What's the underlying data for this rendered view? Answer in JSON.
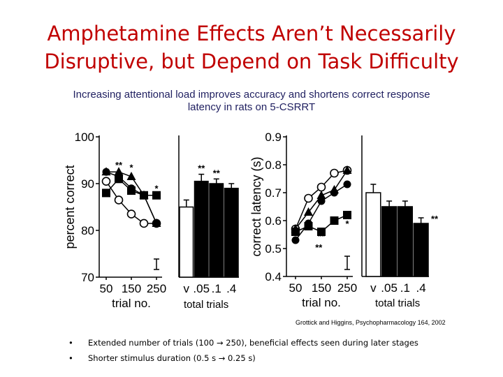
{
  "slide": {
    "title_line1": "Amphetamine Effects Aren’t Necessarily",
    "title_line2": "Disruptive, but Depend on Task Difficulty",
    "subtitle_line1": "Increasing attentional load improves accuracy and shortens correct response",
    "subtitle_line2": "latency in rats on 5-CSRRT",
    "total_trials_left": "total trials",
    "total_trials_right": "total trials",
    "citation": "Grottick and Higgins, Psychopharmacology 164, 2002",
    "bullets": [
      "Extended number of trials (100 → 250), beneficial effects seen during later stages",
      "Shorter stimulus duration (0.5 s → 0.25 s)"
    ],
    "bullet_glyph": "•"
  },
  "chart_data": [
    {
      "type": "line",
      "ylabel": "percent correct",
      "xlabel": "trial no.",
      "x": [
        50,
        100,
        150,
        200,
        250
      ],
      "x_tick_labels": [
        "50",
        "150",
        "250"
      ],
      "ylim": [
        70,
        100
      ],
      "y_ticks": [
        70,
        80,
        90,
        100
      ],
      "series": [
        {
          "marker": "open-circle",
          "values": [
            90.5,
            86.5,
            83.5,
            81.5,
            81.5
          ]
        },
        {
          "marker": "filled-triangle",
          "values": [
            92.5,
            92.5,
            91.5,
            87.5,
            81.5
          ]
        },
        {
          "marker": "filled-circle",
          "values": [
            92.5,
            91.5,
            89.0,
            87.5,
            81.5
          ]
        },
        {
          "marker": "filled-square",
          "values": [
            88.0,
            91.0,
            88.5,
            87.5,
            87.5
          ]
        }
      ],
      "annotations": [
        {
          "text": "**",
          "x": 100,
          "y": 94.0
        },
        {
          "text": "*",
          "x": 150,
          "y": 93.5
        },
        {
          "text": "*",
          "x": 250,
          "y": 89.0
        }
      ]
    },
    {
      "type": "bar",
      "categories": [
        "v",
        ".05",
        ".1",
        ".4"
      ],
      "values": [
        85.0,
        90.5,
        90.0,
        89.0
      ],
      "errors": [
        1.5,
        1.5,
        1.0,
        1.0
      ],
      "xlabel": "total trials",
      "ylim": [
        70,
        100
      ],
      "annotations": [
        {
          "text": "**",
          "index": 1
        },
        {
          "text": "**",
          "index": 2
        }
      ]
    },
    {
      "type": "line",
      "ylabel": "correct latency (s)",
      "xlabel": "trial no.",
      "x": [
        50,
        100,
        150,
        200,
        250
      ],
      "x_tick_labels": [
        "50",
        "150",
        "250"
      ],
      "ylim": [
        0.4,
        0.9
      ],
      "y_ticks": [
        0.4,
        0.5,
        0.6,
        0.7,
        0.8,
        0.9
      ],
      "series": [
        {
          "marker": "open-circle",
          "values": [
            0.57,
            0.68,
            0.72,
            0.77,
            0.78
          ]
        },
        {
          "marker": "filled-triangle",
          "values": [
            0.57,
            0.63,
            0.69,
            0.71,
            0.78
          ]
        },
        {
          "marker": "filled-circle",
          "values": [
            0.53,
            0.59,
            0.67,
            0.7,
            0.73
          ]
        },
        {
          "marker": "filled-square",
          "values": [
            0.56,
            0.58,
            0.56,
            0.6,
            0.62
          ]
        }
      ],
      "annotations": [
        {
          "text": "**",
          "x": 150,
          "y": 0.545
        },
        {
          "text": "**",
          "x": 140,
          "y": 0.505
        },
        {
          "text": "*",
          "x": 250,
          "y": 0.59
        }
      ]
    },
    {
      "type": "bar",
      "categories": [
        "v",
        ".05",
        ".1",
        ".4"
      ],
      "values": [
        0.7,
        0.65,
        0.65,
        0.59
      ],
      "errors": [
        0.03,
        0.02,
        0.02,
        0.02
      ],
      "xlabel": "total trials",
      "ylim": [
        0.4,
        0.9
      ],
      "annotations": [
        {
          "text": "**",
          "index": 3
        }
      ]
    }
  ]
}
